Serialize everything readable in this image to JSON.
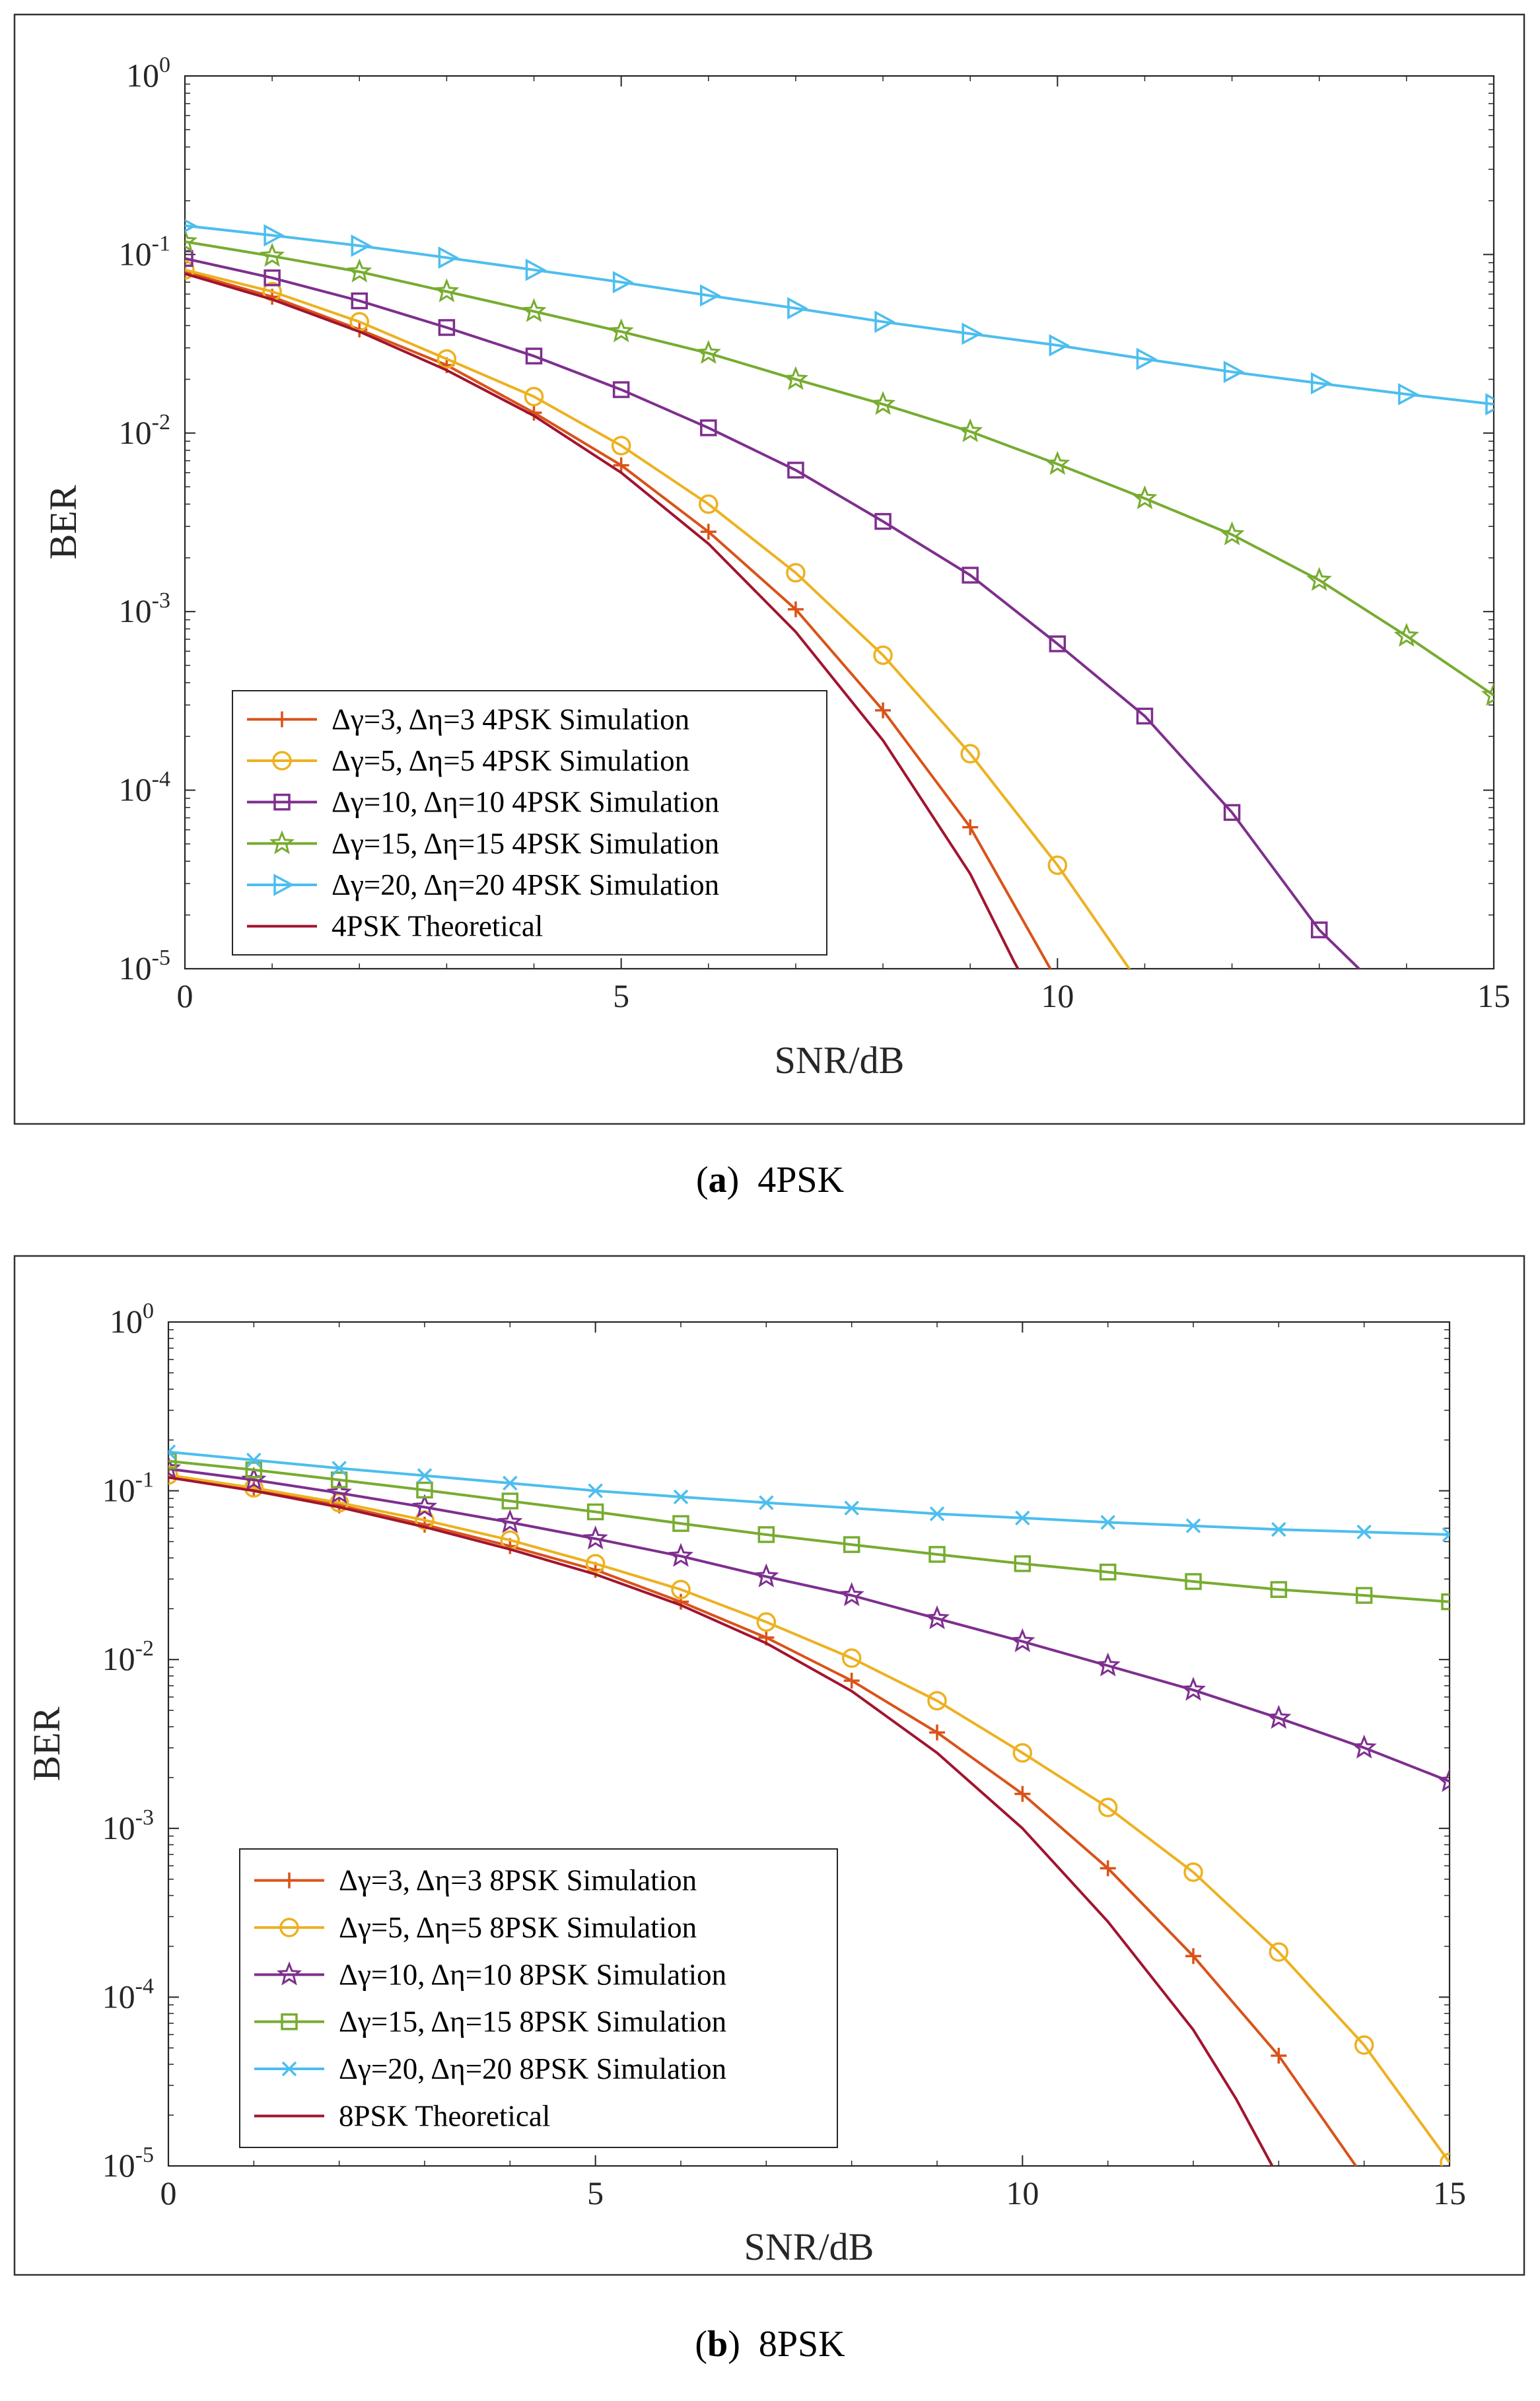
{
  "colors": {
    "red": "#d95319",
    "orange": "#edb120",
    "purple": "#7e2f8e",
    "green": "#77ac30",
    "cyan": "#4dbeee",
    "theory": "#a2142f"
  },
  "chart_data": [
    {
      "type": "line",
      "panel_label": "a",
      "caption": "4PSK",
      "xlabel": "SNR/dB",
      "ylabel": "BER",
      "yscale": "log",
      "xlim": [
        0,
        15
      ],
      "ylim": [
        1e-05,
        1
      ],
      "xticks": [
        "0",
        "5",
        "10",
        "15"
      ],
      "yticks": [
        {
          "base": "10",
          "exp": "0"
        },
        {
          "base": "10",
          "exp": "-1"
        },
        {
          "base": "10",
          "exp": "-2"
        },
        {
          "base": "10",
          "exp": "-3"
        },
        {
          "base": "10",
          "exp": "-4"
        },
        {
          "base": "10",
          "exp": "-5"
        }
      ],
      "grid": false,
      "legend_position": "bottom-left",
      "series": [
        {
          "name": "Δγ=3, Δη=3 4PSK Simulation",
          "color_key": "red",
          "marker": "plus",
          "x": [
            0,
            1,
            2,
            3,
            4,
            5,
            6,
            7,
            8,
            9,
            10
          ],
          "y": [
            0.08,
            0.058,
            0.038,
            0.024,
            0.013,
            0.0066,
            0.0028,
            0.00103,
            0.00028,
            6.2e-05,
            8.5e-06
          ]
        },
        {
          "name": "Δγ=5, Δη=5 4PSK Simulation",
          "color_key": "orange",
          "marker": "circle",
          "x": [
            0,
            1,
            2,
            3,
            4,
            5,
            6,
            7,
            8,
            9,
            10,
            11
          ],
          "y": [
            0.082,
            0.062,
            0.042,
            0.026,
            0.016,
            0.0085,
            0.004,
            0.00165,
            0.00057,
            0.00016,
            3.8e-05,
            7.5e-06
          ]
        },
        {
          "name": "Δγ=10, Δη=10 4PSK Simulation",
          "color_key": "purple",
          "marker": "square",
          "x": [
            0,
            1,
            2,
            3,
            4,
            5,
            6,
            7,
            8,
            9,
            10,
            11,
            12,
            13,
            14
          ],
          "y": [
            0.095,
            0.074,
            0.055,
            0.039,
            0.027,
            0.0175,
            0.0107,
            0.0062,
            0.0032,
            0.0016,
            0.00066,
            0.00026,
            7.5e-05,
            1.65e-05,
            5.5e-06
          ]
        },
        {
          "name": "Δγ=15, Δη=15 4PSK Simulation",
          "color_key": "green",
          "marker": "star",
          "x": [
            0,
            1,
            2,
            3,
            4,
            5,
            6,
            7,
            8,
            9,
            10,
            11,
            12,
            13,
            14,
            15
          ],
          "y": [
            0.118,
            0.098,
            0.08,
            0.062,
            0.048,
            0.037,
            0.028,
            0.02,
            0.0145,
            0.0102,
            0.0067,
            0.0043,
            0.0027,
            0.0015,
            0.00073,
            0.00034
          ]
        },
        {
          "name": "Δγ=20, Δη=20 4PSK Simulation",
          "color_key": "cyan",
          "marker": "triangle-right",
          "x": [
            0,
            1,
            2,
            3,
            4,
            5,
            6,
            7,
            8,
            9,
            10,
            11,
            12,
            13,
            14,
            15
          ],
          "y": [
            0.145,
            0.128,
            0.112,
            0.096,
            0.082,
            0.07,
            0.059,
            0.05,
            0.042,
            0.036,
            0.031,
            0.026,
            0.022,
            0.019,
            0.0165,
            0.0145
          ]
        },
        {
          "name": "4PSK Theoretical",
          "color_key": "theory",
          "marker": "none",
          "x": [
            0,
            1,
            2,
            3,
            4,
            5,
            6,
            7,
            8,
            9,
            9.5,
            10
          ],
          "y": [
            0.078,
            0.056,
            0.037,
            0.0225,
            0.0125,
            0.006,
            0.0024,
            0.00077,
            0.00019,
            3.4e-05,
            1.1e-05,
            4e-06
          ]
        }
      ]
    },
    {
      "type": "line",
      "panel_label": "b",
      "caption": "8PSK",
      "xlabel": "SNR/dB",
      "ylabel": "BER",
      "yscale": "log",
      "xlim": [
        0,
        15
      ],
      "ylim": [
        1e-05,
        1
      ],
      "xticks": [
        "0",
        "5",
        "10",
        "15"
      ],
      "yticks": [
        {
          "base": "10",
          "exp": "0"
        },
        {
          "base": "10",
          "exp": "-1"
        },
        {
          "base": "10",
          "exp": "-2"
        },
        {
          "base": "10",
          "exp": "-3"
        },
        {
          "base": "10",
          "exp": "-4"
        },
        {
          "base": "10",
          "exp": "-5"
        }
      ],
      "grid": false,
      "legend_position": "bottom-left",
      "series": [
        {
          "name": "Δγ=3, Δη=3 8PSK Simulation",
          "color_key": "red",
          "marker": "plus",
          "x": [
            0,
            1,
            2,
            3,
            4,
            5,
            6,
            7,
            8,
            9,
            10,
            11,
            12,
            13,
            14
          ],
          "y": [
            0.122,
            0.102,
            0.082,
            0.063,
            0.047,
            0.034,
            0.022,
            0.0135,
            0.0075,
            0.0037,
            0.0016,
            0.00058,
            0.000175,
            4.5e-05,
            8.5e-06
          ]
        },
        {
          "name": "Δγ=5, Δη=5 8PSK Simulation",
          "color_key": "orange",
          "marker": "circle",
          "x": [
            0,
            1,
            2,
            3,
            4,
            5,
            6,
            7,
            8,
            9,
            10,
            11,
            12,
            13,
            14,
            15
          ],
          "y": [
            0.124,
            0.104,
            0.085,
            0.067,
            0.051,
            0.037,
            0.026,
            0.0167,
            0.0102,
            0.0057,
            0.0028,
            0.00133,
            0.00055,
            0.000185,
            5.2e-05,
            1.05e-05
          ]
        },
        {
          "name": "Δγ=10, Δη=10 8PSK Simulation",
          "color_key": "purple",
          "marker": "star",
          "x": [
            0,
            1,
            2,
            3,
            4,
            5,
            6,
            7,
            8,
            9,
            10,
            11,
            12,
            13,
            14,
            15
          ],
          "y": [
            0.135,
            0.116,
            0.097,
            0.08,
            0.065,
            0.052,
            0.041,
            0.031,
            0.024,
            0.0175,
            0.0128,
            0.0092,
            0.0066,
            0.0045,
            0.003,
            0.0019
          ]
        },
        {
          "name": "Δγ=15, Δη=15 8PSK Simulation",
          "color_key": "green",
          "marker": "square",
          "x": [
            0,
            1,
            2,
            3,
            4,
            5,
            6,
            7,
            8,
            9,
            10,
            11,
            12,
            13,
            14,
            15
          ],
          "y": [
            0.15,
            0.133,
            0.116,
            0.101,
            0.087,
            0.075,
            0.064,
            0.055,
            0.048,
            0.042,
            0.037,
            0.033,
            0.029,
            0.026,
            0.024,
            0.022
          ]
        },
        {
          "name": "Δγ=20, Δη=20 8PSK Simulation",
          "color_key": "cyan",
          "marker": "x",
          "x": [
            0,
            1,
            2,
            3,
            4,
            5,
            6,
            7,
            8,
            9,
            10,
            11,
            12,
            13,
            14,
            15
          ],
          "y": [
            0.17,
            0.152,
            0.136,
            0.123,
            0.111,
            0.1,
            0.092,
            0.085,
            0.079,
            0.073,
            0.069,
            0.065,
            0.062,
            0.059,
            0.057,
            0.055
          ]
        },
        {
          "name": "8PSK Theoretical",
          "color_key": "theory",
          "marker": "none",
          "x": [
            0,
            1,
            2,
            3,
            4,
            5,
            6,
            7,
            8,
            9,
            10,
            11,
            12,
            12.5,
            13
          ],
          "y": [
            0.12,
            0.1,
            0.08,
            0.061,
            0.045,
            0.032,
            0.021,
            0.0125,
            0.0065,
            0.0028,
            0.001,
            0.00028,
            6.4e-05,
            2.5e-05,
            8.5e-06
          ]
        }
      ]
    }
  ]
}
